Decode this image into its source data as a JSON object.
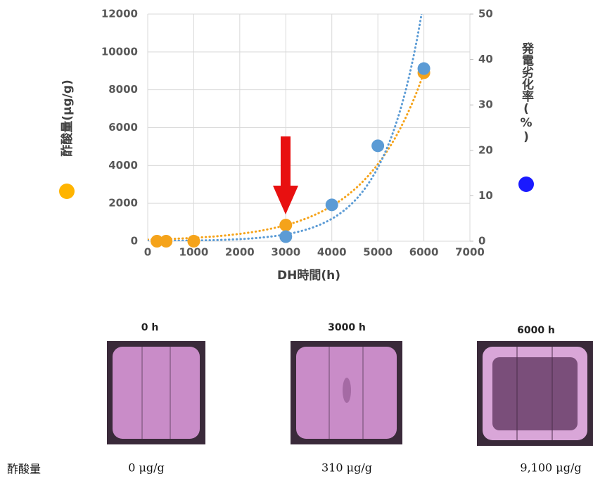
{
  "chart_data": {
    "type": "scatter",
    "x_label": "DH時間(h)",
    "y_label": "酢酸量(μg/g)",
    "y2_label": "発電劣化率(%)",
    "xlim": [
      0,
      7000
    ],
    "xticks": [
      0,
      1000,
      2000,
      3000,
      4000,
      5000,
      6000,
      7000
    ],
    "ylim": [
      0,
      12000
    ],
    "yticks": [
      0,
      2000,
      4000,
      6000,
      8000,
      10000,
      12000
    ],
    "y2lim": [
      0,
      50
    ],
    "y2ticks": [
      0,
      10,
      20,
      30,
      40,
      50
    ],
    "grid": true,
    "series": [
      {
        "color": "#f5a31a",
        "x": [
          200,
          400,
          1000,
          3000,
          6000
        ],
        "values": [
          0,
          0,
          0,
          850,
          8900
        ],
        "trendline": "exponential"
      },
      {
        "color": "#5b9bd5",
        "axis": "y2",
        "x": [
          3000,
          4000,
          5000,
          6000
        ],
        "values": [
          1,
          8,
          21,
          38
        ],
        "trendline": "exponential"
      }
    ],
    "y_marker_color": "#ffb400",
    "y2_marker_color": "#1a1aff"
  },
  "images": [
    {
      "label": "0 h"
    },
    {
      "label": "3000 h"
    },
    {
      "label": "6000 h"
    }
  ],
  "acetic_acid": {
    "label": "酢酸量",
    "values": [
      "0 μg/g",
      "310 μg/g",
      "9,100 μg/g"
    ]
  }
}
